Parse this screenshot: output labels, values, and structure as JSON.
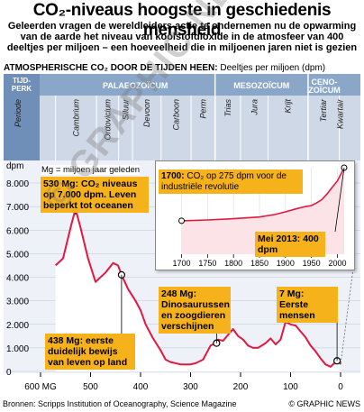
{
  "title": "CO₂-niveaus hoogste in geschiedenis mensheid",
  "subtitle": "Geleerden vragen de wereldleiders actie te ondernemen nu de opwarming van de aarde het niveau van koolstofdioxide in de atmosfeer van 400 deeltjes per miljoen – een hoeveelheid die in miljoenen jaren niet is gezien",
  "chart_header": {
    "bold": "ATMOSPHERISCHE CO₂ DOOR DE TIJDEN HEEN:",
    "normal": " Deeltjes per miljoen (dpm)"
  },
  "timeline": {
    "era_label": "TIJD-PERK",
    "eras": [
      "PALAEOZOÏCUM",
      "MESOZOÏCUM",
      "CENO-ZOÏCUM"
    ],
    "period_label": "Periode",
    "periods": [
      "Cambrium",
      "Ordovicium",
      "Siluur",
      "Devoon",
      "Carboon",
      "Perm",
      "Trias",
      "Jura",
      "Krijt",
      "Tertiar",
      "Kwartair"
    ]
  },
  "legend_note": "Mg = miljoen jaar geleden",
  "ylabel": "dpm",
  "annotations": {
    "a530_bold": "530 Mg:",
    "a530_text": " CO₂ niveaus op 7.000 dpm. Leven beperkt tot oceanen",
    "a438_bold": "438 Mg:",
    "a438_text": " eerste duidelijk bewijs van leven op land",
    "a248_bold": "248 Mg:",
    "a248_text": " Dinosaurussen en zoogdieren verschijnen",
    "a7_bold": "7 Mg:",
    "a7_text": " Eerste mensen",
    "a1700_bold": "1700:",
    "a1700_text": " CO₂ op 275 dpm voor de industriële revolutie",
    "a2013_bold": "Mei 2013:",
    "a2013_text": " 400 dpm"
  },
  "watermark": "© GRAPHIC NEWS",
  "footer": {
    "source": "Bronnen: Scripps Institution of Oceanography, Science Magazine",
    "credit": "© GRAPHIC NEWS"
  },
  "colors": {
    "line": "#e4173e",
    "fill": "#ffffff",
    "band": "#cfd8e6",
    "header_band": "#8aa6c8",
    "annotation": "#f6b21b"
  },
  "chart_data": [
    {
      "type": "line",
      "xlabel": "",
      "ylabel": "dpm",
      "x_tick_labels": [
        "600 MG",
        "500",
        "400",
        "300",
        "200",
        "100",
        "0"
      ],
      "y_tick_labels": [
        "0",
        "1.000",
        "2.000",
        "3.000",
        "4.000",
        "5.000",
        "6.000",
        "7.000",
        "8.000"
      ],
      "xlim": [
        600,
        0
      ],
      "ylim": [
        0,
        8000
      ],
      "series": [
        {
          "x": [
            570,
            555,
            540,
            530,
            520,
            505,
            490,
            470,
            455,
            445,
            438,
            425,
            410,
            400,
            390,
            375,
            360,
            350,
            340,
            320,
            300,
            290,
            275,
            260,
            250,
            245,
            235,
            225,
            215,
            205,
            195,
            185,
            175,
            165,
            150,
            140,
            130,
            120,
            110,
            100,
            90,
            80,
            70,
            60,
            50,
            40,
            30,
            20,
            10,
            5,
            0
          ],
          "y": [
            4500,
            4800,
            6100,
            6900,
            6100,
            4800,
            3800,
            4200,
            4600,
            4500,
            4100,
            3500,
            3000,
            2600,
            2000,
            1400,
            900,
            500,
            400,
            300,
            300,
            350,
            500,
            1100,
            1200,
            1350,
            1300,
            1550,
            1800,
            1500,
            1350,
            1100,
            1000,
            1000,
            1200,
            1400,
            1150,
            1350,
            2100,
            2000,
            1950,
            1700,
            1450,
            1100,
            850,
            550,
            300,
            200,
            400,
            550,
            300
          ]
        }
      ]
    },
    {
      "type": "line",
      "x_tick_labels": [
        "1700",
        "1750",
        "1800",
        "1850",
        "1900",
        "1950",
        "2000"
      ],
      "xlim": [
        1680,
        2020
      ],
      "ylim": [
        260,
        400
      ],
      "series": [
        {
          "x": [
            1700,
            1750,
            1800,
            1850,
            1880,
            1900,
            1920,
            1940,
            1950,
            1960,
            1970,
            1980,
            1990,
            2000,
            2013
          ],
          "y": [
            275,
            277,
            280,
            284,
            290,
            296,
            303,
            309,
            311,
            317,
            325,
            338,
            354,
            369,
            400
          ]
        }
      ]
    }
  ]
}
